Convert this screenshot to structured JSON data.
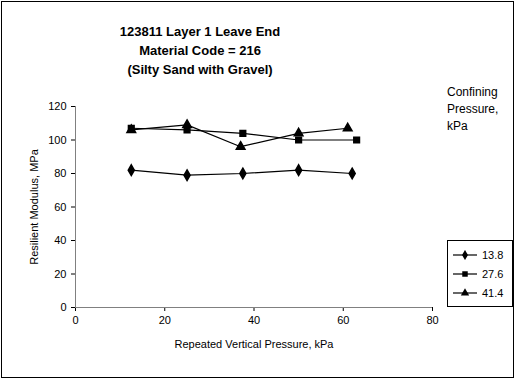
{
  "chart_data": {
    "type": "line",
    "title": [
      "123811 Layer 1 Leave End",
      "Material Code = 216",
      "(Silty Sand with Gravel)"
    ],
    "x_label": "Repeated Vertical Pressure, kPa",
    "y_label": "Resilient Modulus, MPa",
    "legend_title": "Confining Pressure, kPa",
    "series": [
      {
        "name": "13.8",
        "color": "#000000",
        "marker": "diamond",
        "x": [
          12.5,
          25,
          37.5,
          50,
          62
        ],
        "values": [
          82,
          79,
          80,
          82,
          80
        ]
      },
      {
        "name": "27.6",
        "color": "#000000",
        "marker": "square",
        "x": [
          12.5,
          25,
          37.5,
          50,
          63
        ],
        "values": [
          107,
          106,
          104,
          100,
          100
        ]
      },
      {
        "name": "41.4",
        "color": "#000000",
        "marker": "triangle",
        "x": [
          12.5,
          25,
          37,
          50,
          61
        ],
        "values": [
          106,
          109,
          96,
          104,
          107
        ]
      }
    ],
    "xlim": [
      0,
      80
    ],
    "xticks": [
      0,
      20,
      40,
      60,
      80
    ],
    "ylim": [
      0,
      120
    ],
    "yticks": [
      0,
      20,
      40,
      60,
      80,
      100,
      120
    ],
    "grid": false,
    "legend": "right"
  }
}
